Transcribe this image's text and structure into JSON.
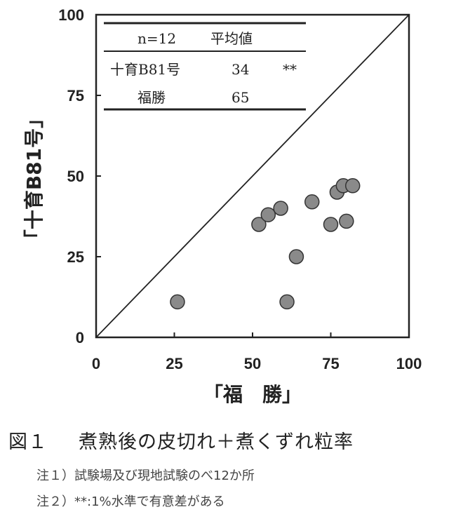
{
  "chart_data": {
    "type": "scatter",
    "xlabel": "「福　勝」",
    "ylabel": "「十育B81号」",
    "xlim": [
      0,
      100
    ],
    "ylim": [
      0,
      100
    ],
    "xticks": [
      "0",
      "25",
      "50",
      "75",
      "100"
    ],
    "yticks": [
      "0",
      "25",
      "50",
      "75",
      "100"
    ],
    "diagonal_line": true,
    "point_color": "#8a8a8a",
    "points": [
      {
        "x": 26,
        "y": 11
      },
      {
        "x": 61,
        "y": 11
      },
      {
        "x": 64,
        "y": 25
      },
      {
        "x": 52,
        "y": 35
      },
      {
        "x": 55,
        "y": 38
      },
      {
        "x": 59,
        "y": 40
      },
      {
        "x": 69,
        "y": 42
      },
      {
        "x": 75,
        "y": 35
      },
      {
        "x": 80,
        "y": 36
      },
      {
        "x": 77,
        "y": 45
      },
      {
        "x": 79,
        "y": 47
      },
      {
        "x": 82,
        "y": 47
      }
    ],
    "table": {
      "header": [
        "n=12",
        "平均値"
      ],
      "rows": [
        {
          "name": "十育B81号",
          "value": "34",
          "sig": "**"
        },
        {
          "name": "福勝",
          "value": "65",
          "sig": ""
        }
      ]
    }
  },
  "caption": {
    "label": "図１",
    "title": "煮熟後の皮切れ＋煮くずれ粒率"
  },
  "notes": [
    "注１）試験場及び現地試験のべ12か所",
    "注２）**:1%水準で有意差がある"
  ]
}
